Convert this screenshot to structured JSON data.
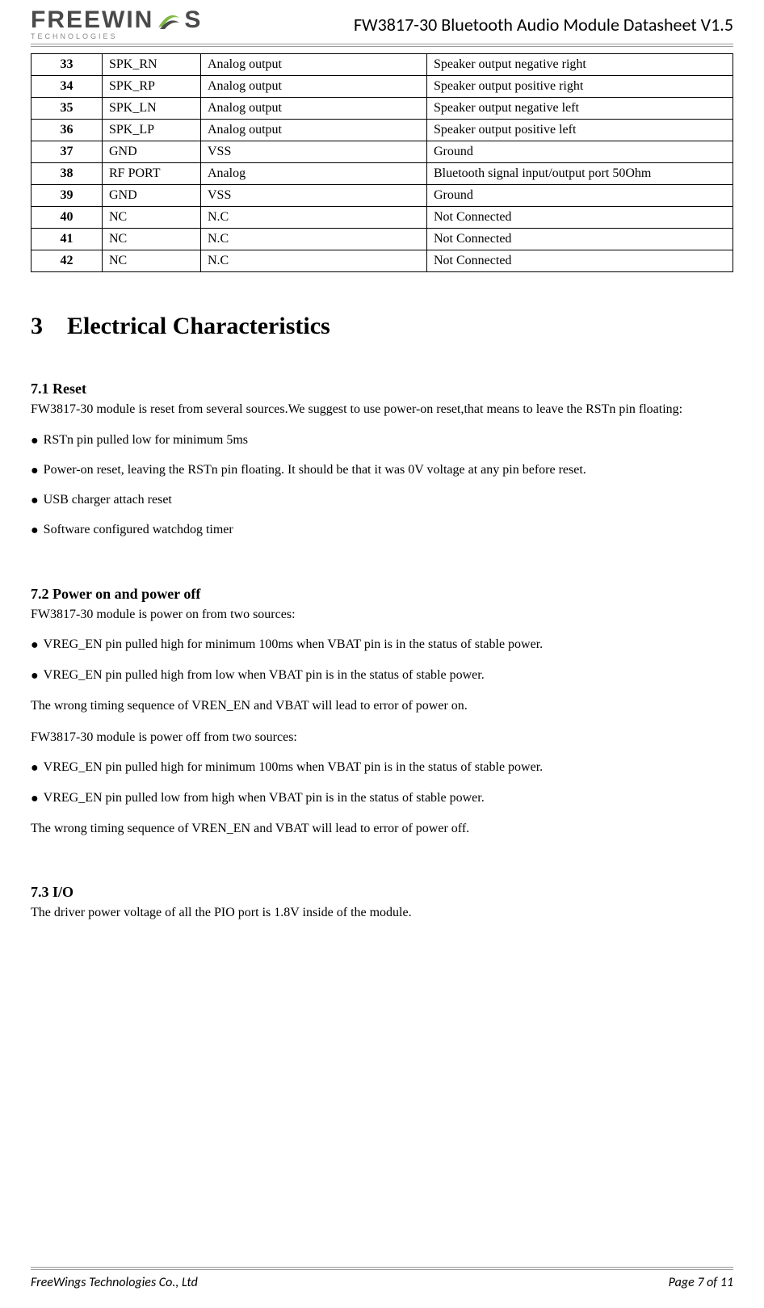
{
  "header": {
    "logo_text_1": "FREEWIN",
    "logo_text_2": "S",
    "logo_sub": "TECHNOLOGIES",
    "doc_title": "FW3817-30 Bluetooth Audio Module Datasheet V1.5"
  },
  "pin_table": {
    "rows": [
      {
        "num": "33",
        "name": "SPK_RN",
        "type": "Analog output",
        "desc": "Speaker output negative right"
      },
      {
        "num": "34",
        "name": "SPK_RP",
        "type": "Analog output",
        "desc": "Speaker output positive right"
      },
      {
        "num": "35",
        "name": "SPK_LN",
        "type": "Analog output",
        "desc": "Speaker output negative left"
      },
      {
        "num": "36",
        "name": "SPK_LP",
        "type": "Analog output",
        "desc": "Speaker output positive left"
      },
      {
        "num": "37",
        "name": "GND",
        "type": "VSS",
        "desc": "Ground"
      },
      {
        "num": "38",
        "name": "RF PORT",
        "type": "Analog",
        "desc": "Bluetooth signal input/output port 50Ohm",
        "justify": true
      },
      {
        "num": "39",
        "name": "GND",
        "type": "VSS",
        "desc": "Ground"
      },
      {
        "num": "40",
        "name": "NC",
        "type": "N.C",
        "desc": "Not Connected"
      },
      {
        "num": "41",
        "name": "NC",
        "type": "N.C",
        "desc": "Not Connected"
      },
      {
        "num": "42",
        "name": "NC",
        "type": "N.C",
        "desc": "Not Connected"
      }
    ]
  },
  "section3": {
    "heading": "3 Electrical Characteristics"
  },
  "s71": {
    "heading": "7.1 Reset",
    "intro": "FW3817-30 module is reset from several sources.We suggest to use power-on reset,that means to leave the RSTn pin floating:",
    "bullets": [
      "RSTn pin pulled low for minimum 5ms",
      "Power-on reset, leaving the RSTn pin floating. It should be that it was 0V voltage at any pin before reset.",
      "USB charger attach reset",
      "Software configured watchdog timer"
    ]
  },
  "s72": {
    "heading": "7.2 Power on and power off",
    "on_intro": "FW3817-30 module is power on from two sources:",
    "on_bullets": [
      "VREG_EN pin pulled high for minimum 100ms when VBAT pin is in the status of stable power.",
      "VREG_EN pin pulled high from low  when VBAT pin is in the status of stable power."
    ],
    "on_note": "The wrong timing sequence of  VREN_EN and VBAT will lead to error of power on.",
    "off_intro": "FW3817-30 module is power off from two sources:",
    "off_bullets": [
      "VREG_EN pin pulled high for minimum 100ms when VBAT pin is in the status of stable power.",
      "VREG_EN pin pulled low from high  when VBAT pin is in the status of stable power."
    ],
    "off_note": "The wrong timing sequence of  VREN_EN and VBAT will lead to error of power off."
  },
  "s73": {
    "heading": "7.3 I/O",
    "text": "The driver power voltage of all the PIO port is 1.8V inside of the module."
  },
  "footer": {
    "company": "FreeWings Technologies Co., Ltd",
    "page": "Page 7 of 11"
  },
  "colors": {
    "logo_gray": "#4a4a4a",
    "logo_green": "#7fb946",
    "logo_sub_gray": "#888888",
    "border_gray": "#999999"
  }
}
